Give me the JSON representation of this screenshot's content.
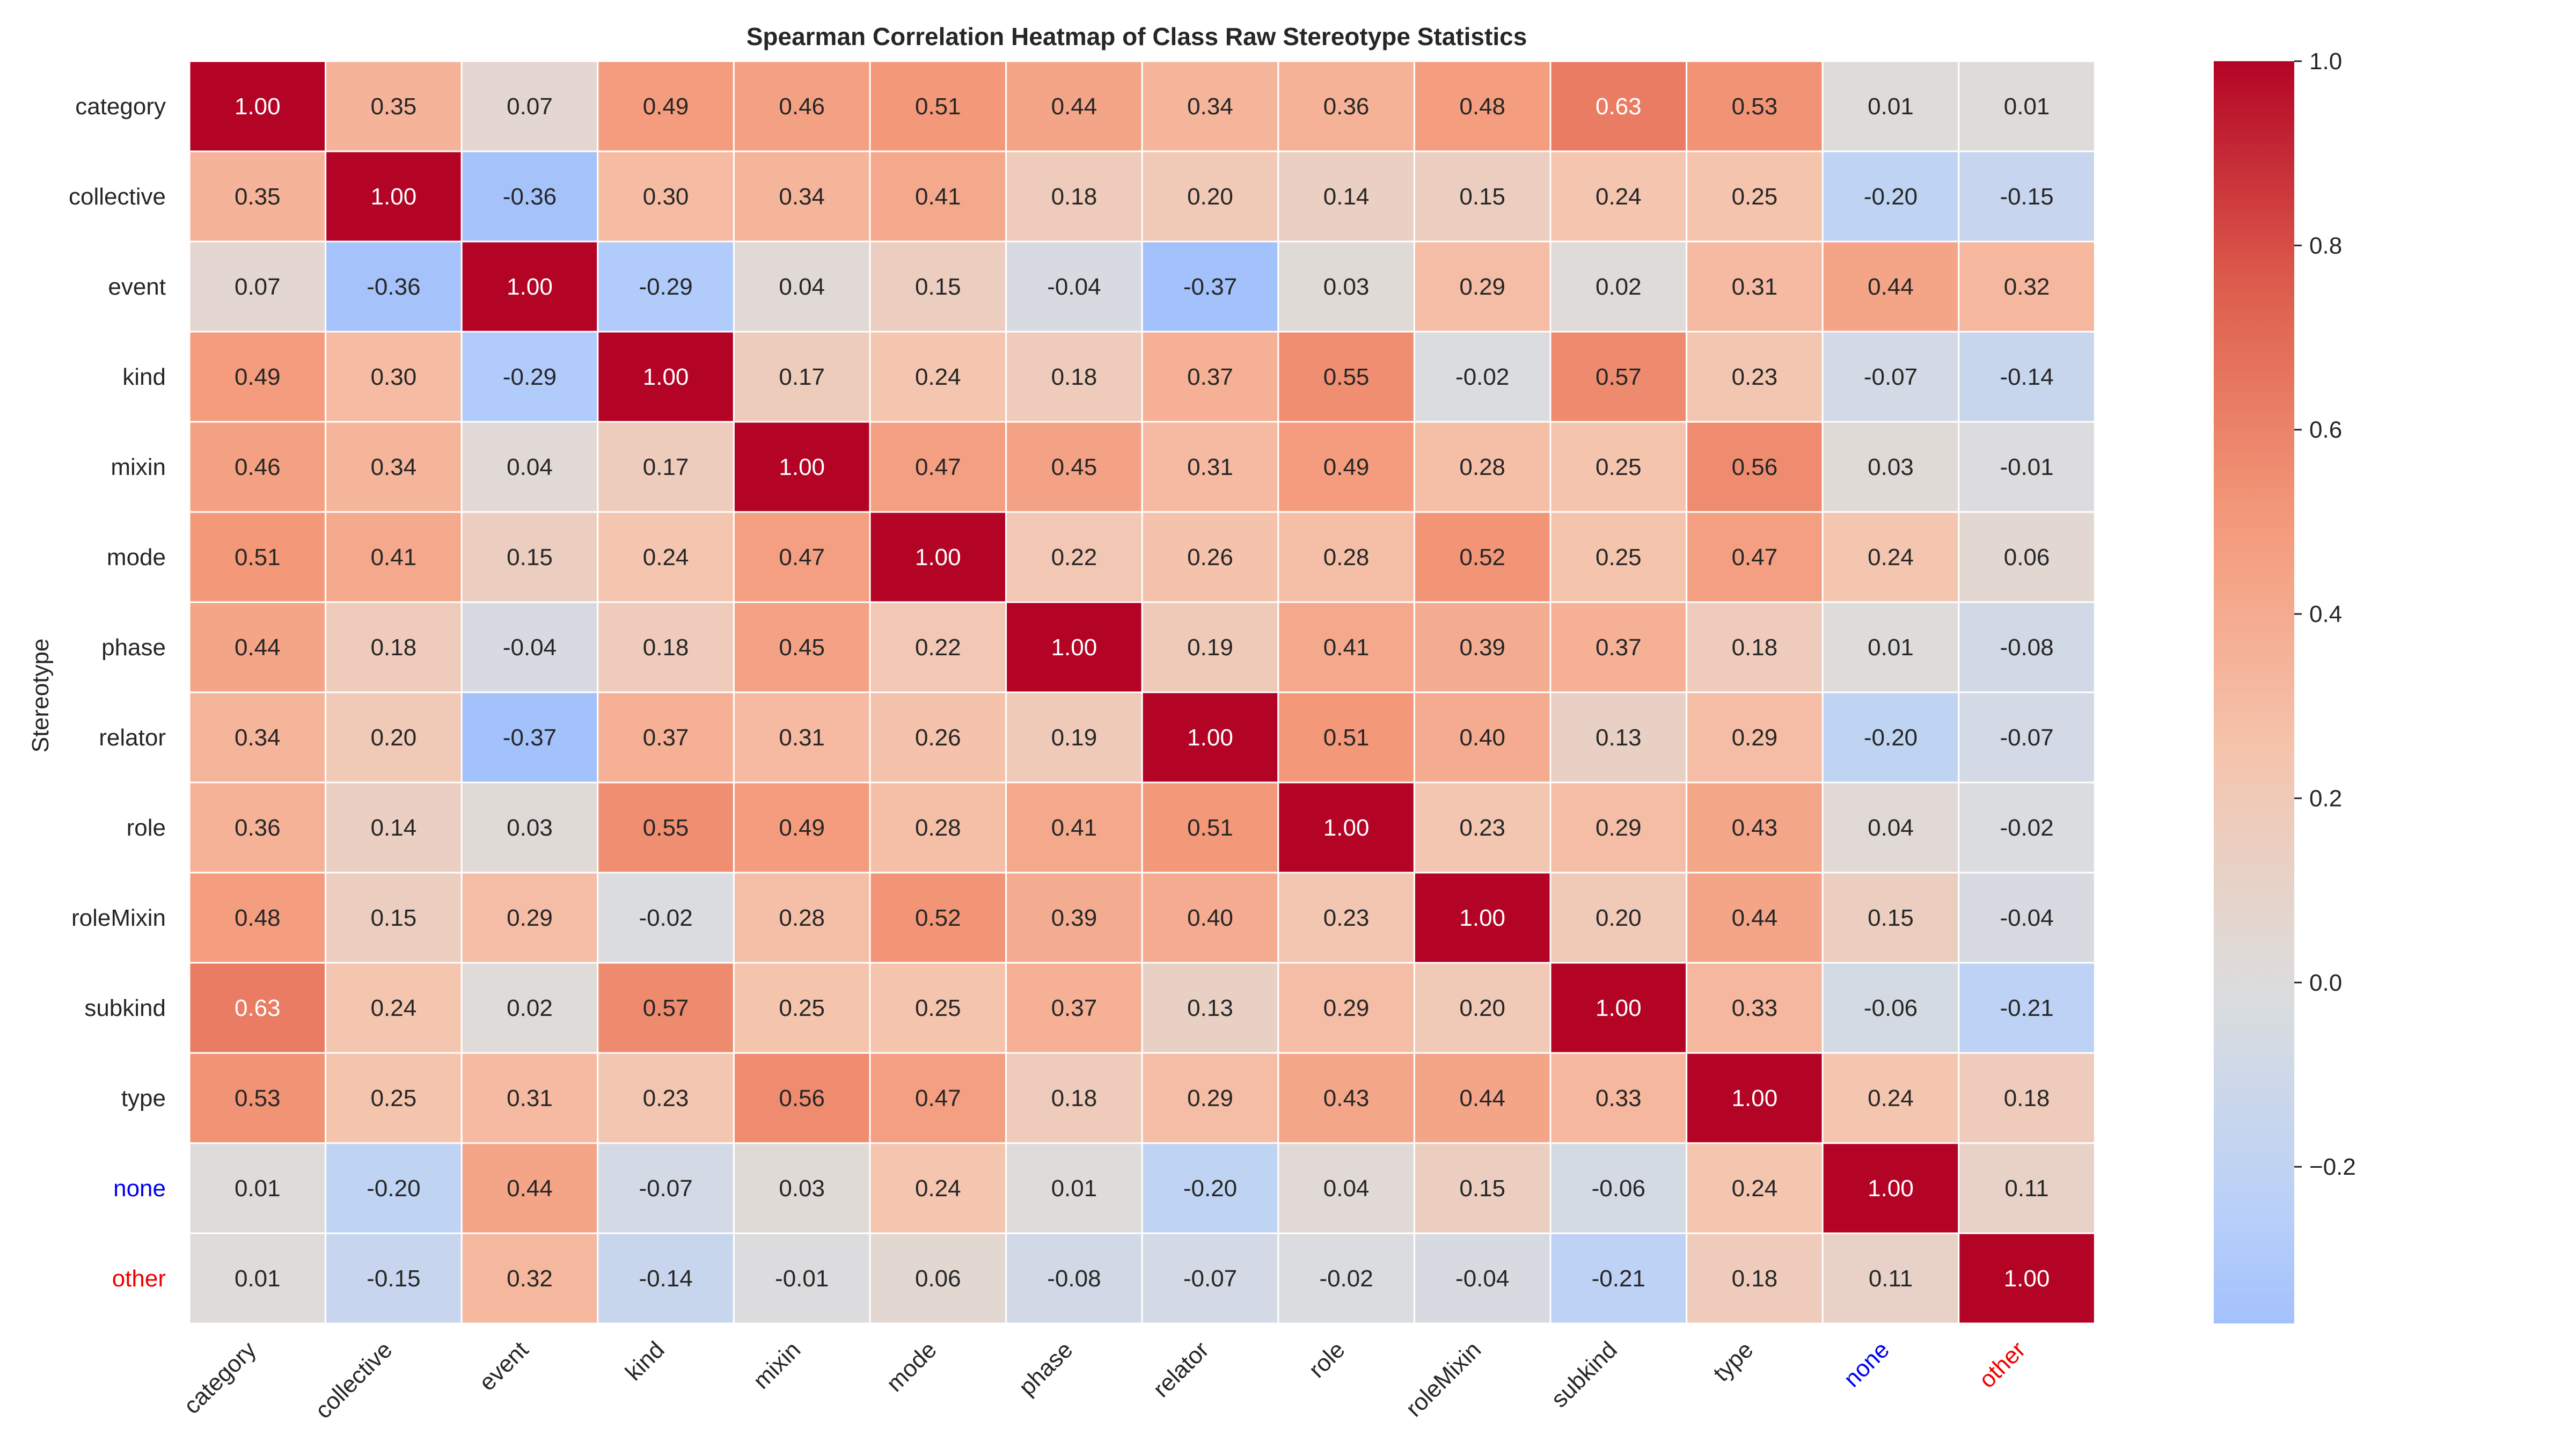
{
  "chart_data": {
    "type": "heatmap",
    "title": "Spearman Correlation Heatmap of Class Raw Stereotype Statistics",
    "ylabel": "Stereotype",
    "xlabel": "",
    "rows": [
      "category",
      "collective",
      "event",
      "kind",
      "mixin",
      "mode",
      "phase",
      "relator",
      "role",
      "roleMixin",
      "subkind",
      "type",
      "none",
      "other"
    ],
    "columns": [
      "category",
      "collective",
      "event",
      "kind",
      "mixin",
      "mode",
      "phase",
      "relator",
      "role",
      "roleMixin",
      "subkind",
      "type",
      "none",
      "other"
    ],
    "label_colors": {
      "none": "#0000ee",
      "other": "#ee0000"
    },
    "values": [
      [
        1.0,
        0.35,
        0.07,
        0.49,
        0.46,
        0.51,
        0.44,
        0.34,
        0.36,
        0.48,
        0.63,
        0.53,
        0.01,
        0.01
      ],
      [
        0.35,
        1.0,
        -0.36,
        0.3,
        0.34,
        0.41,
        0.18,
        0.2,
        0.14,
        0.15,
        0.24,
        0.25,
        -0.2,
        -0.15
      ],
      [
        0.07,
        -0.36,
        1.0,
        -0.29,
        0.04,
        0.15,
        -0.04,
        -0.37,
        0.03,
        0.29,
        0.02,
        0.31,
        0.44,
        0.32
      ],
      [
        0.49,
        0.3,
        -0.29,
        1.0,
        0.17,
        0.24,
        0.18,
        0.37,
        0.55,
        -0.02,
        0.57,
        0.23,
        -0.07,
        -0.14
      ],
      [
        0.46,
        0.34,
        0.04,
        0.17,
        1.0,
        0.47,
        0.45,
        0.31,
        0.49,
        0.28,
        0.25,
        0.56,
        0.03,
        -0.01
      ],
      [
        0.51,
        0.41,
        0.15,
        0.24,
        0.47,
        1.0,
        0.22,
        0.26,
        0.28,
        0.52,
        0.25,
        0.47,
        0.24,
        0.06
      ],
      [
        0.44,
        0.18,
        -0.04,
        0.18,
        0.45,
        0.22,
        1.0,
        0.19,
        0.41,
        0.39,
        0.37,
        0.18,
        0.01,
        -0.08
      ],
      [
        0.34,
        0.2,
        -0.37,
        0.37,
        0.31,
        0.26,
        0.19,
        1.0,
        0.51,
        0.4,
        0.13,
        0.29,
        -0.2,
        -0.07
      ],
      [
        0.36,
        0.14,
        0.03,
        0.55,
        0.49,
        0.28,
        0.41,
        0.51,
        1.0,
        0.23,
        0.29,
        0.43,
        0.04,
        -0.02
      ],
      [
        0.48,
        0.15,
        0.29,
        -0.02,
        0.28,
        0.52,
        0.39,
        0.4,
        0.23,
        1.0,
        0.2,
        0.44,
        0.15,
        -0.04
      ],
      [
        0.63,
        0.24,
        0.02,
        0.57,
        0.25,
        0.25,
        0.37,
        0.13,
        0.29,
        0.2,
        1.0,
        0.33,
        -0.06,
        -0.21
      ],
      [
        0.53,
        0.25,
        0.31,
        0.23,
        0.56,
        0.47,
        0.18,
        0.29,
        0.43,
        0.44,
        0.33,
        1.0,
        0.24,
        0.18
      ],
      [
        0.01,
        -0.2,
        0.44,
        -0.07,
        0.03,
        0.24,
        0.01,
        -0.2,
        0.04,
        0.15,
        -0.06,
        0.24,
        1.0,
        0.11
      ],
      [
        0.01,
        -0.15,
        0.32,
        -0.14,
        -0.01,
        0.06,
        -0.08,
        -0.07,
        -0.02,
        -0.04,
        -0.21,
        0.18,
        0.11,
        1.0
      ]
    ],
    "colormap": "coolwarm",
    "center": 0.0,
    "vmin": -0.37,
    "vmax": 1.0,
    "colorbar_ticks": [
      "1.0",
      "0.8",
      "0.6",
      "0.4",
      "0.2",
      "0.0",
      "−0.2"
    ],
    "colorbar_tick_values": [
      1.0,
      0.8,
      0.6,
      0.4,
      0.2,
      0.0,
      -0.2
    ],
    "annotation_format": "2 decimals",
    "grid_lines": "white",
    "legend": "colorbar-right"
  }
}
